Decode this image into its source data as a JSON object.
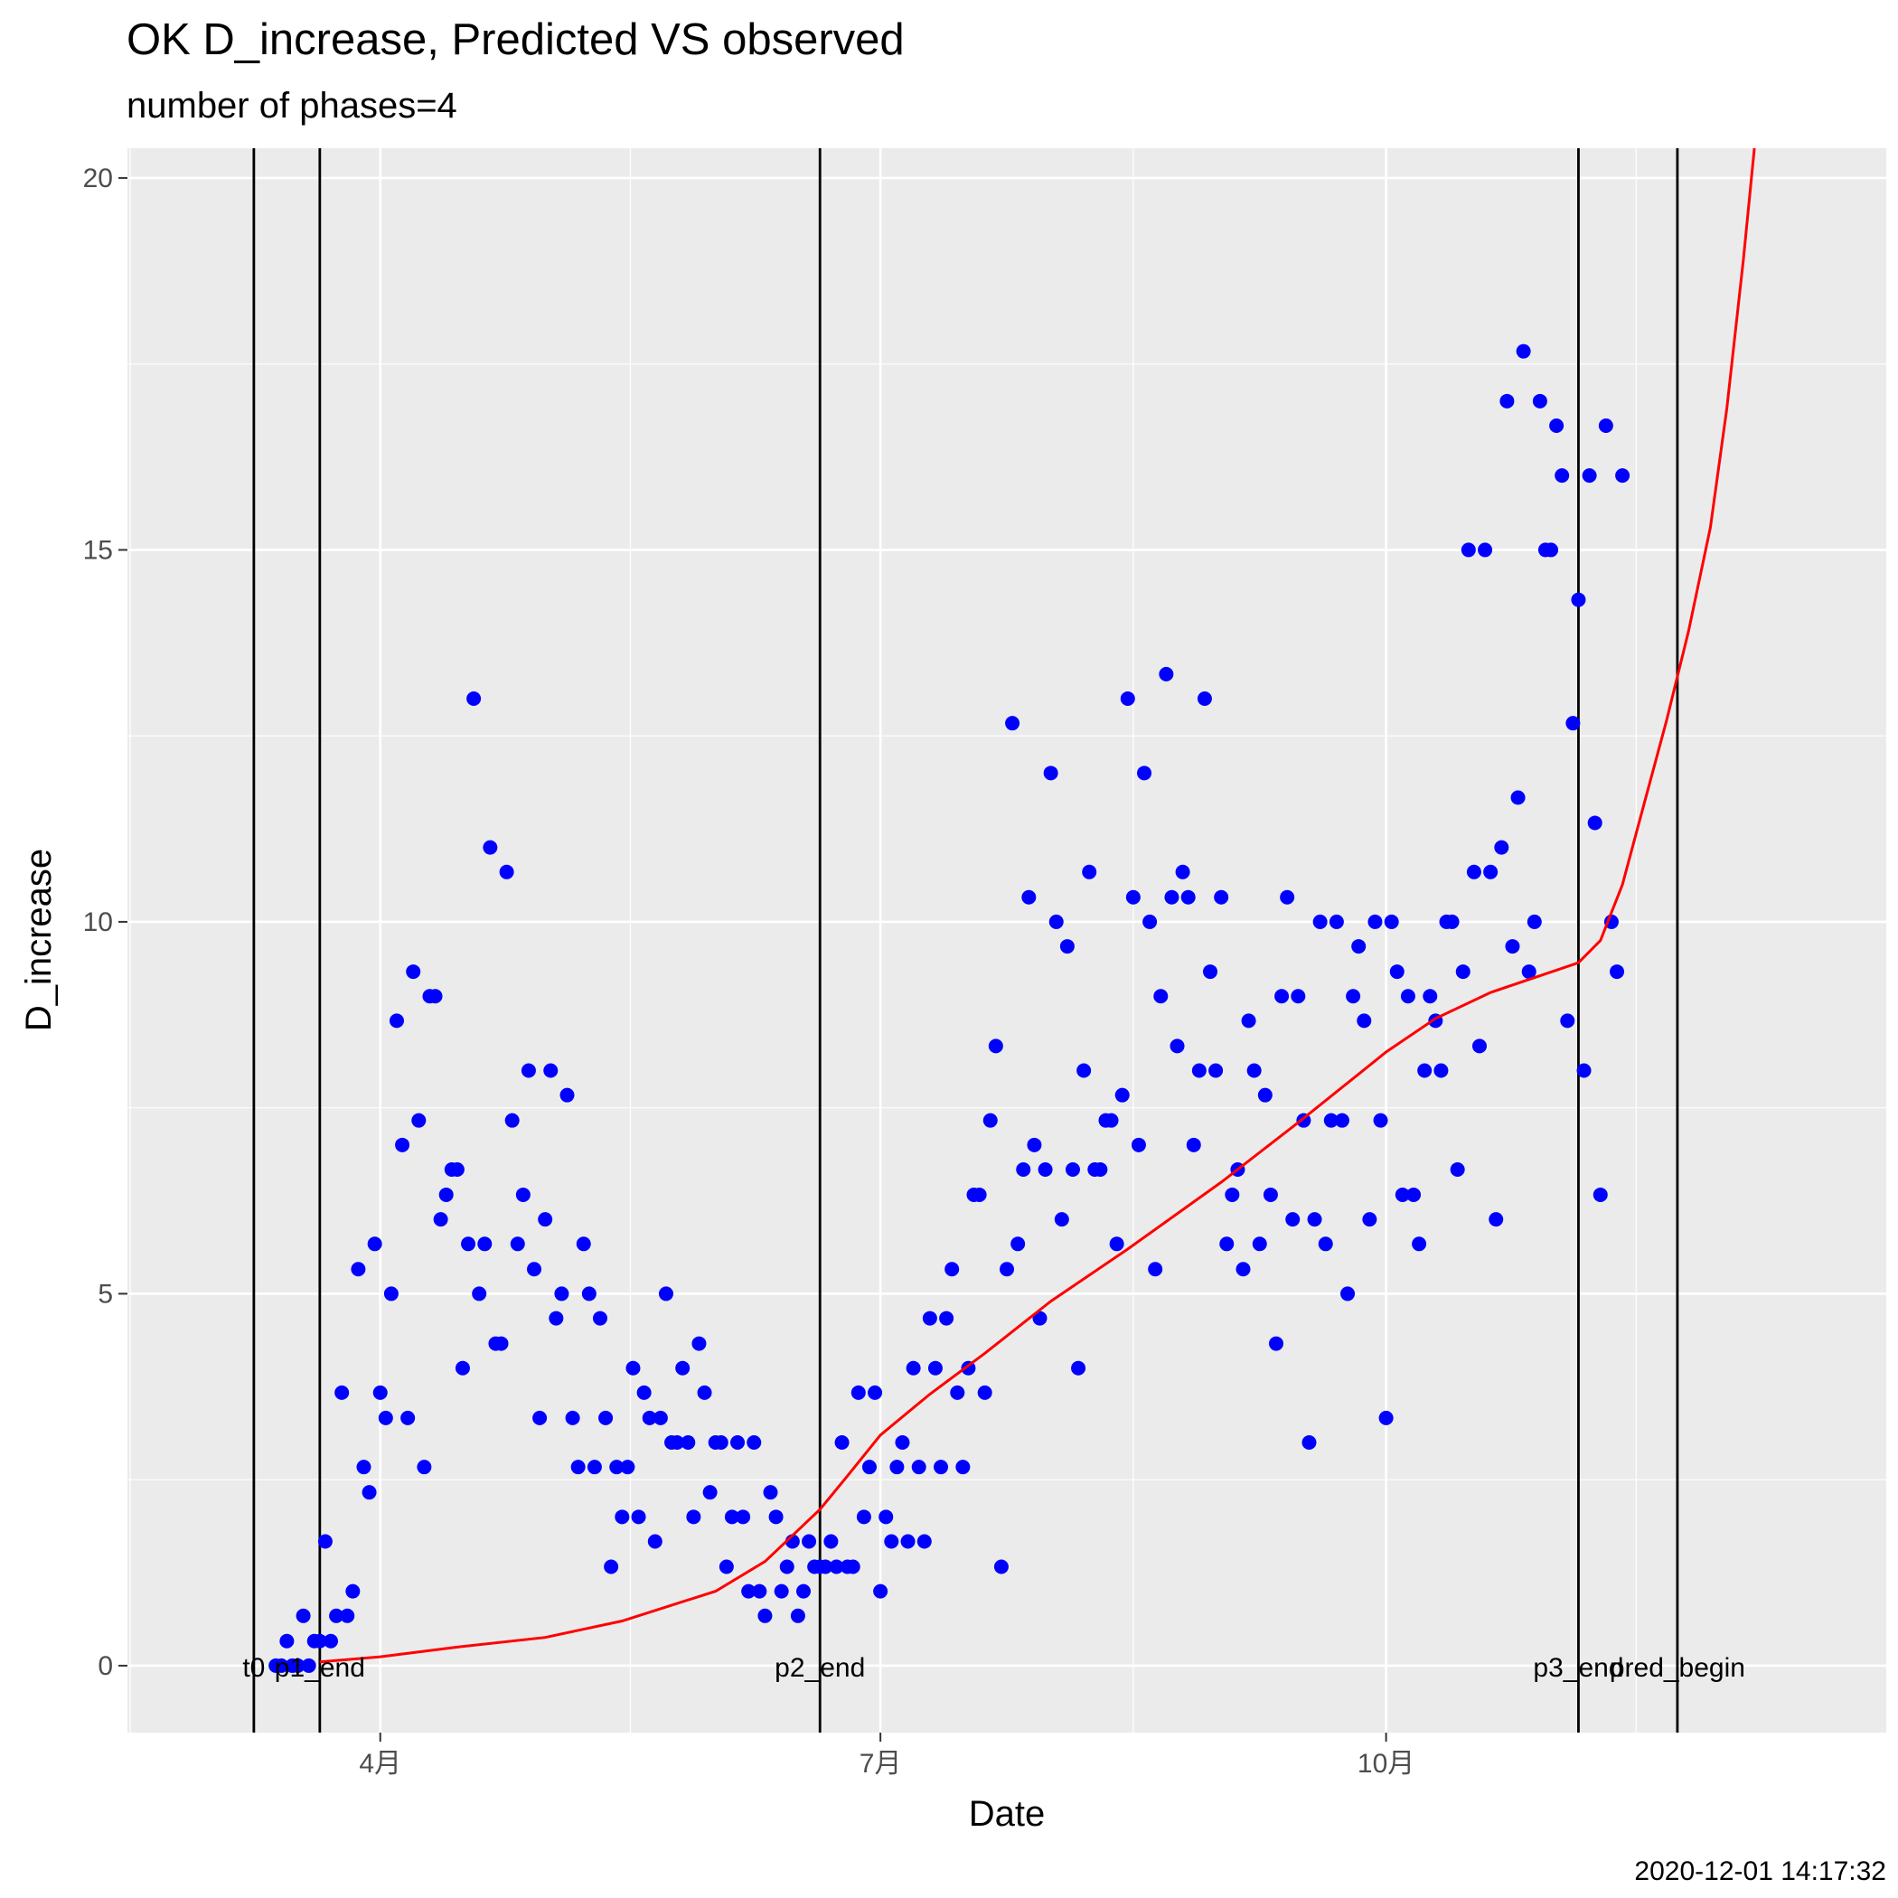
{
  "chart_data": {
    "type": "scatter",
    "title": "OK D_increase, Predicted VS observed",
    "subtitle": "number of phases=4",
    "xlabel": "Date",
    "ylabel": "D_increase",
    "caption": "2020-12-01 14:17:32",
    "xlim": [
      "2020-02-15",
      "2020-12-31"
    ],
    "ylim": [
      -0.9,
      20.4
    ],
    "x_ticks": [
      {
        "date": "2020-04-01",
        "label": "4月"
      },
      {
        "date": "2020-07-01",
        "label": "7月"
      },
      {
        "date": "2020-10-01",
        "label": "10月"
      }
    ],
    "y_ticks": [
      0,
      5,
      10,
      15,
      20
    ],
    "grid": true,
    "colors": {
      "panel": "#ebebeb",
      "grid": "#ffffff",
      "points": "#0000ff",
      "predicted": "#ff0000",
      "vlines": "#000000"
    },
    "vlines": [
      {
        "date": "2020-03-09",
        "label": "t0"
      },
      {
        "date": "2020-03-21",
        "label": "p1_end"
      },
      {
        "date": "2020-06-20",
        "label": "p2_end"
      },
      {
        "date": "2020-11-05",
        "label": "p3_end"
      },
      {
        "date": "2020-11-23",
        "label": "pred_begin"
      }
    ],
    "series": [
      {
        "type": "scatter",
        "points": [
          [
            "2020-03-13",
            0
          ],
          [
            "2020-03-14",
            0
          ],
          [
            "2020-03-15",
            0.33
          ],
          [
            "2020-03-16",
            0
          ],
          [
            "2020-03-17",
            0
          ],
          [
            "2020-03-18",
            0.67
          ],
          [
            "2020-03-19",
            0
          ],
          [
            "2020-03-20",
            0.33
          ],
          [
            "2020-03-21",
            0.33
          ],
          [
            "2020-03-22",
            1.67
          ],
          [
            "2020-03-23",
            0.33
          ],
          [
            "2020-03-24",
            0.67
          ],
          [
            "2020-03-25",
            3.67
          ],
          [
            "2020-03-26",
            0.67
          ],
          [
            "2020-03-27",
            1
          ],
          [
            "2020-03-28",
            5.33
          ],
          [
            "2020-03-29",
            2.67
          ],
          [
            "2020-03-30",
            2.33
          ],
          [
            "2020-03-31",
            5.67
          ],
          [
            "2020-04-01",
            3.67
          ],
          [
            "2020-04-02",
            3.33
          ],
          [
            "2020-04-03",
            5
          ],
          [
            "2020-04-04",
            8.67
          ],
          [
            "2020-04-05",
            7
          ],
          [
            "2020-04-06",
            3.33
          ],
          [
            "2020-04-07",
            9.33
          ],
          [
            "2020-04-08",
            7.33
          ],
          [
            "2020-04-09",
            2.67
          ],
          [
            "2020-04-10",
            9
          ],
          [
            "2020-04-11",
            9
          ],
          [
            "2020-04-12",
            6
          ],
          [
            "2020-04-13",
            6.33
          ],
          [
            "2020-04-14",
            6.67
          ],
          [
            "2020-04-15",
            6.67
          ],
          [
            "2020-04-16",
            4
          ],
          [
            "2020-04-17",
            5.67
          ],
          [
            "2020-04-18",
            13
          ],
          [
            "2020-04-19",
            5
          ],
          [
            "2020-04-20",
            5.67
          ],
          [
            "2020-04-21",
            11
          ],
          [
            "2020-04-22",
            4.33
          ],
          [
            "2020-04-23",
            4.33
          ],
          [
            "2020-04-24",
            10.67
          ],
          [
            "2020-04-25",
            7.33
          ],
          [
            "2020-04-26",
            5.67
          ],
          [
            "2020-04-27",
            6.33
          ],
          [
            "2020-04-28",
            8
          ],
          [
            "2020-04-29",
            5.33
          ],
          [
            "2020-04-30",
            3.33
          ],
          [
            "2020-05-01",
            6
          ],
          [
            "2020-05-02",
            8
          ],
          [
            "2020-05-03",
            4.67
          ],
          [
            "2020-05-04",
            5
          ],
          [
            "2020-05-05",
            7.67
          ],
          [
            "2020-05-06",
            3.33
          ],
          [
            "2020-05-07",
            2.67
          ],
          [
            "2020-05-08",
            5.67
          ],
          [
            "2020-05-09",
            5
          ],
          [
            "2020-05-10",
            2.67
          ],
          [
            "2020-05-11",
            4.67
          ],
          [
            "2020-05-12",
            3.33
          ],
          [
            "2020-05-13",
            1.33
          ],
          [
            "2020-05-14",
            2.67
          ],
          [
            "2020-05-15",
            2
          ],
          [
            "2020-05-16",
            2.67
          ],
          [
            "2020-05-17",
            4
          ],
          [
            "2020-05-18",
            2
          ],
          [
            "2020-05-19",
            3.67
          ],
          [
            "2020-05-20",
            3.33
          ],
          [
            "2020-05-21",
            1.67
          ],
          [
            "2020-05-22",
            3.33
          ],
          [
            "2020-05-23",
            5
          ],
          [
            "2020-05-24",
            3
          ],
          [
            "2020-05-25",
            3
          ],
          [
            "2020-05-26",
            4
          ],
          [
            "2020-05-27",
            3
          ],
          [
            "2020-05-28",
            2
          ],
          [
            "2020-05-29",
            4.33
          ],
          [
            "2020-05-30",
            3.67
          ],
          [
            "2020-05-31",
            2.33
          ],
          [
            "2020-06-01",
            3
          ],
          [
            "2020-06-02",
            3
          ],
          [
            "2020-06-03",
            1.33
          ],
          [
            "2020-06-04",
            2
          ],
          [
            "2020-06-05",
            3
          ],
          [
            "2020-06-06",
            2
          ],
          [
            "2020-06-07",
            1
          ],
          [
            "2020-06-08",
            3
          ],
          [
            "2020-06-09",
            1
          ],
          [
            "2020-06-10",
            0.67
          ],
          [
            "2020-06-11",
            2.33
          ],
          [
            "2020-06-12",
            2
          ],
          [
            "2020-06-13",
            1
          ],
          [
            "2020-06-14",
            1.33
          ],
          [
            "2020-06-15",
            1.67
          ],
          [
            "2020-06-16",
            0.67
          ],
          [
            "2020-06-17",
            1
          ],
          [
            "2020-06-18",
            1.67
          ],
          [
            "2020-06-19",
            1.33
          ],
          [
            "2020-06-20",
            1.33
          ],
          [
            "2020-06-21",
            1.33
          ],
          [
            "2020-06-22",
            1.67
          ],
          [
            "2020-06-23",
            1.33
          ],
          [
            "2020-06-24",
            3
          ],
          [
            "2020-06-25",
            1.33
          ],
          [
            "2020-06-26",
            1.33
          ],
          [
            "2020-06-27",
            3.67
          ],
          [
            "2020-06-28",
            2
          ],
          [
            "2020-06-29",
            2.67
          ],
          [
            "2020-06-30",
            3.67
          ],
          [
            "2020-07-01",
            1
          ],
          [
            "2020-07-02",
            2
          ],
          [
            "2020-07-03",
            1.67
          ],
          [
            "2020-07-04",
            2.67
          ],
          [
            "2020-07-05",
            3
          ],
          [
            "2020-07-06",
            1.67
          ],
          [
            "2020-07-07",
            4
          ],
          [
            "2020-07-08",
            2.67
          ],
          [
            "2020-07-09",
            1.67
          ],
          [
            "2020-07-10",
            4.67
          ],
          [
            "2020-07-11",
            4
          ],
          [
            "2020-07-12",
            2.67
          ],
          [
            "2020-07-13",
            4.67
          ],
          [
            "2020-07-14",
            5.33
          ],
          [
            "2020-07-15",
            3.67
          ],
          [
            "2020-07-16",
            2.67
          ],
          [
            "2020-07-17",
            4
          ],
          [
            "2020-07-18",
            6.33
          ],
          [
            "2020-07-19",
            6.33
          ],
          [
            "2020-07-20",
            3.67
          ],
          [
            "2020-07-21",
            7.33
          ],
          [
            "2020-07-22",
            8.33
          ],
          [
            "2020-07-23",
            1.33
          ],
          [
            "2020-07-24",
            5.33
          ],
          [
            "2020-07-25",
            12.67
          ],
          [
            "2020-07-26",
            5.67
          ],
          [
            "2020-07-27",
            6.67
          ],
          [
            "2020-07-28",
            10.33
          ],
          [
            "2020-07-29",
            7
          ],
          [
            "2020-07-30",
            4.67
          ],
          [
            "2020-07-31",
            6.67
          ],
          [
            "2020-08-01",
            12
          ],
          [
            "2020-08-02",
            10
          ],
          [
            "2020-08-03",
            6
          ],
          [
            "2020-08-04",
            9.67
          ],
          [
            "2020-08-05",
            6.67
          ],
          [
            "2020-08-06",
            4
          ],
          [
            "2020-08-07",
            8
          ],
          [
            "2020-08-08",
            10.67
          ],
          [
            "2020-08-09",
            6.67
          ],
          [
            "2020-08-10",
            6.67
          ],
          [
            "2020-08-11",
            7.33
          ],
          [
            "2020-08-12",
            7.33
          ],
          [
            "2020-08-13",
            5.67
          ],
          [
            "2020-08-14",
            7.67
          ],
          [
            "2020-08-15",
            13
          ],
          [
            "2020-08-16",
            10.33
          ],
          [
            "2020-08-17",
            7
          ],
          [
            "2020-08-18",
            12
          ],
          [
            "2020-08-19",
            10
          ],
          [
            "2020-08-20",
            5.33
          ],
          [
            "2020-08-21",
            9
          ],
          [
            "2020-08-22",
            13.33
          ],
          [
            "2020-08-23",
            10.33
          ],
          [
            "2020-08-24",
            8.33
          ],
          [
            "2020-08-25",
            10.67
          ],
          [
            "2020-08-26",
            10.33
          ],
          [
            "2020-08-27",
            7
          ],
          [
            "2020-08-28",
            8
          ],
          [
            "2020-08-29",
            13
          ],
          [
            "2020-08-30",
            9.33
          ],
          [
            "2020-08-31",
            8
          ],
          [
            "2020-09-01",
            10.33
          ],
          [
            "2020-09-02",
            5.67
          ],
          [
            "2020-09-03",
            6.33
          ],
          [
            "2020-09-04",
            6.67
          ],
          [
            "2020-09-05",
            5.33
          ],
          [
            "2020-09-06",
            8.67
          ],
          [
            "2020-09-07",
            8
          ],
          [
            "2020-09-08",
            5.67
          ],
          [
            "2020-09-09",
            7.67
          ],
          [
            "2020-09-10",
            6.33
          ],
          [
            "2020-09-11",
            4.33
          ],
          [
            "2020-09-12",
            9
          ],
          [
            "2020-09-13",
            10.33
          ],
          [
            "2020-09-14",
            6
          ],
          [
            "2020-09-15",
            9
          ],
          [
            "2020-09-16",
            7.33
          ],
          [
            "2020-09-17",
            3
          ],
          [
            "2020-09-18",
            6
          ],
          [
            "2020-09-19",
            10
          ],
          [
            "2020-09-20",
            5.67
          ],
          [
            "2020-09-21",
            7.33
          ],
          [
            "2020-09-22",
            10
          ],
          [
            "2020-09-23",
            7.33
          ],
          [
            "2020-09-24",
            5
          ],
          [
            "2020-09-25",
            9
          ],
          [
            "2020-09-26",
            9.67
          ],
          [
            "2020-09-27",
            8.67
          ],
          [
            "2020-09-28",
            6
          ],
          [
            "2020-09-29",
            10
          ],
          [
            "2020-09-30",
            7.33
          ],
          [
            "2020-10-01",
            3.33
          ],
          [
            "2020-10-02",
            10
          ],
          [
            "2020-10-03",
            9.33
          ],
          [
            "2020-10-04",
            6.33
          ],
          [
            "2020-10-05",
            9
          ],
          [
            "2020-10-06",
            6.33
          ],
          [
            "2020-10-07",
            5.67
          ],
          [
            "2020-10-08",
            8
          ],
          [
            "2020-10-09",
            9
          ],
          [
            "2020-10-10",
            8.67
          ],
          [
            "2020-10-11",
            8
          ],
          [
            "2020-10-12",
            10
          ],
          [
            "2020-10-13",
            10
          ],
          [
            "2020-10-14",
            6.67
          ],
          [
            "2020-10-15",
            9.33
          ],
          [
            "2020-10-16",
            15
          ],
          [
            "2020-10-17",
            10.67
          ],
          [
            "2020-10-18",
            8.33
          ],
          [
            "2020-10-19",
            15
          ],
          [
            "2020-10-20",
            10.67
          ],
          [
            "2020-10-21",
            6
          ],
          [
            "2020-10-22",
            11
          ],
          [
            "2020-10-23",
            17
          ],
          [
            "2020-10-24",
            9.67
          ],
          [
            "2020-10-25",
            11.67
          ],
          [
            "2020-10-26",
            17.67
          ],
          [
            "2020-10-27",
            9.33
          ],
          [
            "2020-10-28",
            10
          ],
          [
            "2020-10-29",
            17
          ],
          [
            "2020-10-30",
            15
          ],
          [
            "2020-10-31",
            15
          ],
          [
            "2020-11-01",
            16.67
          ],
          [
            "2020-11-02",
            16
          ],
          [
            "2020-11-03",
            8.67
          ],
          [
            "2020-11-04",
            12.67
          ],
          [
            "2020-11-05",
            14.33
          ],
          [
            "2020-11-06",
            8
          ],
          [
            "2020-11-07",
            16
          ],
          [
            "2020-11-08",
            11.33
          ],
          [
            "2020-11-09",
            6.33
          ],
          [
            "2020-11-10",
            16.67
          ],
          [
            "2020-11-11",
            10
          ],
          [
            "2020-11-12",
            9.33
          ],
          [
            "2020-11-13",
            16
          ]
        ]
      },
      {
        "type": "line",
        "points": [
          [
            "2020-03-21",
            0.05
          ],
          [
            "2020-04-01",
            0.12
          ],
          [
            "2020-04-15",
            0.25
          ],
          [
            "2020-05-01",
            0.38
          ],
          [
            "2020-05-15",
            0.6
          ],
          [
            "2020-06-01",
            1.0
          ],
          [
            "2020-06-10",
            1.4
          ],
          [
            "2020-06-20",
            2.1
          ],
          [
            "2020-06-25",
            2.55
          ],
          [
            "2020-07-01",
            3.1
          ],
          [
            "2020-07-10",
            3.65
          ],
          [
            "2020-07-20",
            4.2
          ],
          [
            "2020-08-01",
            4.9
          ],
          [
            "2020-08-15",
            5.6
          ],
          [
            "2020-09-01",
            6.5
          ],
          [
            "2020-09-15",
            7.3
          ],
          [
            "2020-10-01",
            8.25
          ],
          [
            "2020-10-10",
            8.7
          ],
          [
            "2020-10-20",
            9.05
          ],
          [
            "2020-11-01",
            9.35
          ],
          [
            "2020-11-05",
            9.45
          ],
          [
            "2020-11-09",
            9.75
          ],
          [
            "2020-11-13",
            10.5
          ],
          [
            "2020-11-17",
            11.6
          ],
          [
            "2020-11-21",
            12.7
          ],
          [
            "2020-11-25",
            13.9
          ],
          [
            "2020-11-29",
            15.3
          ],
          [
            "2020-12-02",
            16.9
          ],
          [
            "2020-12-05",
            18.9
          ],
          [
            "2020-12-07",
            20.4
          ]
        ]
      }
    ]
  }
}
